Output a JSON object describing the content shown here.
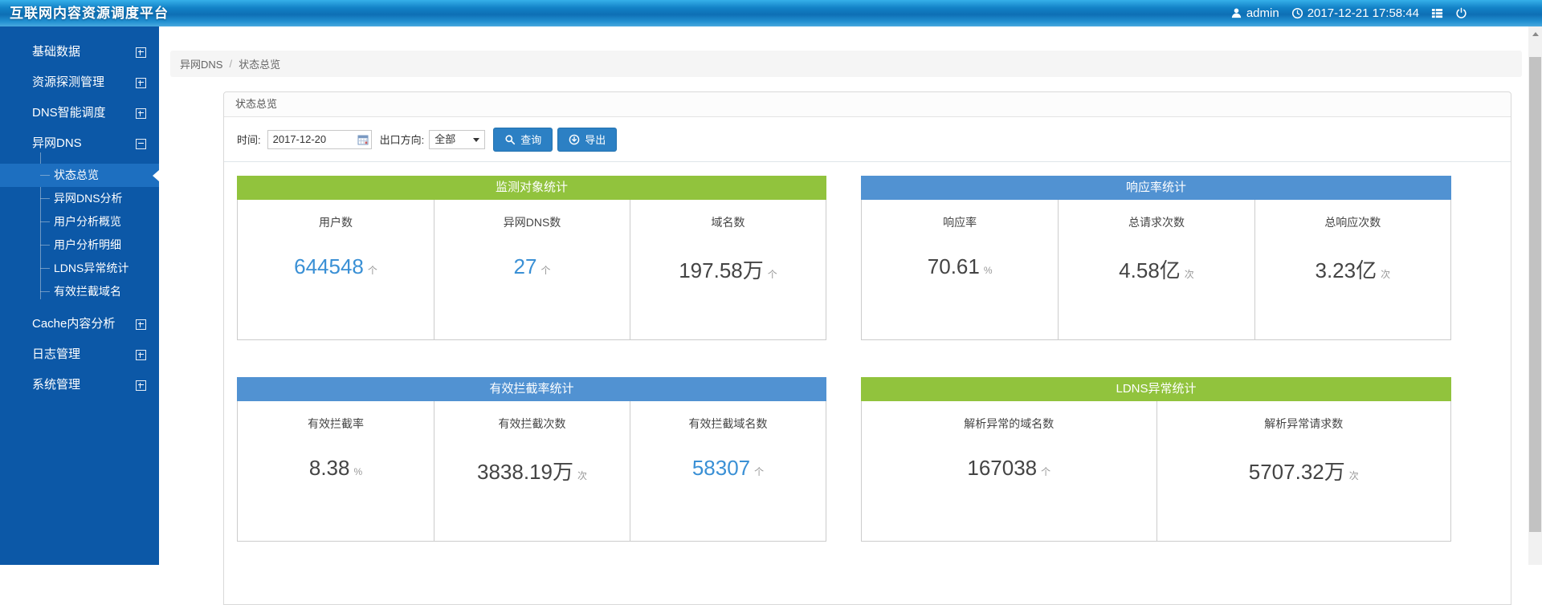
{
  "app": {
    "title": "互联网内容资源调度平台",
    "user": "admin",
    "datetime": "2017-12-21 17:58:44"
  },
  "breadcrumb": {
    "section": "异网DNS",
    "separator": "/",
    "page": "状态总览"
  },
  "sidebar": {
    "items": [
      {
        "id": "basic-data",
        "label": "基础数据",
        "expanded": false
      },
      {
        "id": "resource-detect-management",
        "label": "资源探测管理",
        "expanded": false
      },
      {
        "id": "dns-smart-dispatch",
        "label": "DNS智能调度",
        "expanded": false
      },
      {
        "id": "cross-net-dns",
        "label": "异网DNS",
        "expanded": true,
        "children": [
          {
            "id": "status-overview",
            "label": "状态总览",
            "active": true
          },
          {
            "id": "cross-net-dns-analysis",
            "label": "异网DNS分析",
            "active": false
          },
          {
            "id": "user-analysis-overview",
            "label": "用户分析概览",
            "active": false
          },
          {
            "id": "user-analysis-detail",
            "label": "用户分析明细",
            "active": false
          },
          {
            "id": "ldns-exception-stats",
            "label": "LDNS异常统计",
            "active": false
          },
          {
            "id": "effective-block-domains",
            "label": "有效拦截域名",
            "active": false
          }
        ]
      },
      {
        "id": "cache-content-analysis",
        "label": "Cache内容分析",
        "expanded": false
      },
      {
        "id": "log-management",
        "label": "日志管理",
        "expanded": false
      },
      {
        "id": "system-management",
        "label": "系统管理",
        "expanded": false
      }
    ]
  },
  "panel": {
    "title": "状态总览"
  },
  "filters": {
    "time_label": "时间:",
    "time_value": "2017-12-20",
    "direction_label": "出口方向:",
    "direction_value": "全部",
    "query_button": "查询",
    "export_button": "导出"
  },
  "stats_panels": [
    {
      "id": "monitor-object-stats",
      "title": "监测对象统计",
      "header_color": "#91c33d",
      "cells": [
        {
          "label": "用户数",
          "value": "644548",
          "unit": "个",
          "value_color": "#3a90d5"
        },
        {
          "label": "异网DNS数",
          "value": "27",
          "unit": "个",
          "value_color": "#3a90d5"
        },
        {
          "label": "域名数",
          "value": "197.58万",
          "unit": "个",
          "value_color": "#444444"
        }
      ]
    },
    {
      "id": "response-rate-stats",
      "title": "响应率统计",
      "header_color": "#5192d2",
      "cells": [
        {
          "label": "响应率",
          "value": "70.61",
          "unit": "%",
          "value_color": "#444444"
        },
        {
          "label": "总请求次数",
          "value": "4.58亿",
          "unit": "次",
          "value_color": "#444444"
        },
        {
          "label": "总响应次数",
          "value": "3.23亿",
          "unit": "次",
          "value_color": "#444444"
        }
      ]
    },
    {
      "id": "effective-block-rate-stats",
      "title": "有效拦截率统计",
      "header_color": "#5192d2",
      "cells": [
        {
          "label": "有效拦截率",
          "value": "8.38",
          "unit": "%",
          "value_color": "#444444"
        },
        {
          "label": "有效拦截次数",
          "value": "3838.19万",
          "unit": "次",
          "value_color": "#444444"
        },
        {
          "label": "有效拦截域名数",
          "value": "58307",
          "unit": "个",
          "value_color": "#3a90d5"
        }
      ]
    },
    {
      "id": "ldns-exception-stats-panel",
      "title": "LDNS异常统计",
      "header_color": "#91c33d",
      "cells": [
        {
          "label": "解析异常的域名数",
          "value": "167038",
          "unit": "个",
          "value_color": "#444444"
        },
        {
          "label": "解析异常请求数",
          "value": "5707.32万",
          "unit": "次",
          "value_color": "#444444"
        }
      ]
    }
  ],
  "colors": {
    "sidebar_bg": "#0c58a7",
    "sidebar_active_bg": "#1d6fc0",
    "green_header": "#91c33d",
    "blue_header": "#5192d2",
    "button_blue": "#2c80c4",
    "value_blue": "#3a90d5"
  }
}
